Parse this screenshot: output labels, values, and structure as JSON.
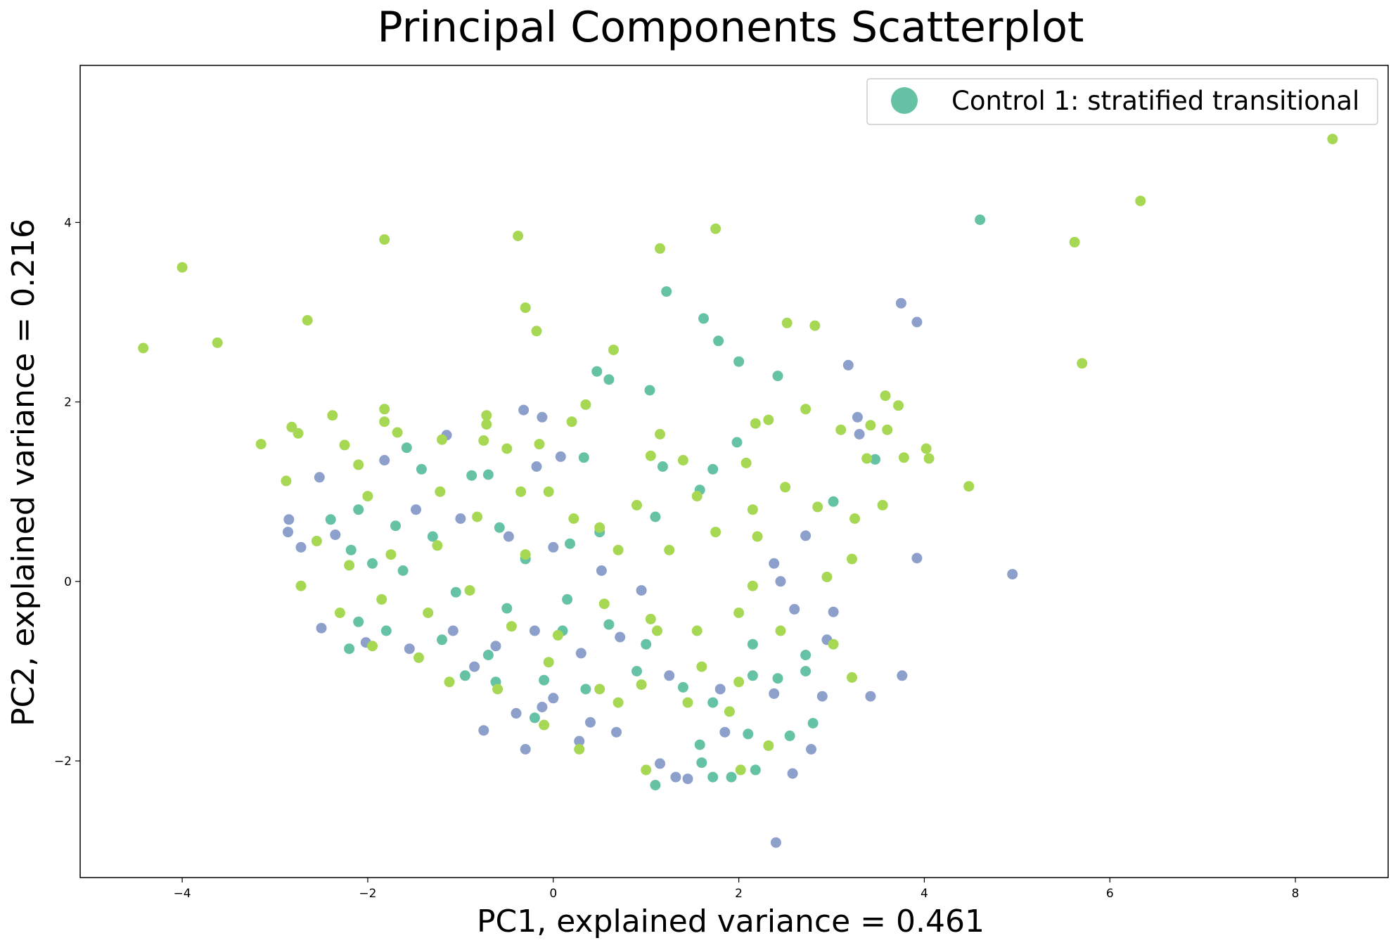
{
  "chart_data": {
    "type": "scatter",
    "title": "Principal Components Scatterplot",
    "xlabel": "PC1, explained variance = 0.461",
    "ylabel": "PC2, explained variance = 0.216",
    "xlim": [
      -5.1,
      9.0
    ],
    "ylim": [
      -3.3,
      5.75
    ],
    "xticks": [
      -4,
      -2,
      0,
      2,
      4,
      6,
      8
    ],
    "yticks": [
      -2,
      0,
      2,
      4
    ],
    "grid": false,
    "legend": {
      "placement": "top-right",
      "entries": [
        {
          "label": "Control 1: stratified transitional",
          "color": "#66c2a5"
        }
      ]
    },
    "colors": {
      "teal": "#66c2a5",
      "purple": "#8da0cb",
      "lime": "#a6d854"
    },
    "series": [
      {
        "color": "#66c2a5",
        "points": [
          [
            4.6,
            4.03
          ],
          [
            1.22,
            3.23
          ],
          [
            1.62,
            2.93
          ],
          [
            1.78,
            2.68
          ],
          [
            2.0,
            2.45
          ],
          [
            0.47,
            2.34
          ],
          [
            0.6,
            2.25
          ],
          [
            1.04,
            2.13
          ],
          [
            2.42,
            2.29
          ],
          [
            1.98,
            1.55
          ],
          [
            3.47,
            1.36
          ],
          [
            3.02,
            0.89
          ],
          [
            1.72,
            1.25
          ],
          [
            0.33,
            1.38
          ],
          [
            -1.58,
            1.49
          ],
          [
            -1.42,
            1.25
          ],
          [
            -0.88,
            1.18
          ],
          [
            -0.7,
            1.19
          ],
          [
            1.18,
            1.28
          ],
          [
            1.58,
            1.02
          ],
          [
            -2.1,
            0.8
          ],
          [
            -2.4,
            0.69
          ],
          [
            -1.7,
            0.62
          ],
          [
            -1.3,
            0.5
          ],
          [
            -0.58,
            0.6
          ],
          [
            0.18,
            0.42
          ],
          [
            0.5,
            0.55
          ],
          [
            1.1,
            0.72
          ],
          [
            -2.18,
            0.35
          ],
          [
            -1.95,
            0.2
          ],
          [
            -1.62,
            0.12
          ],
          [
            -1.05,
            -0.12
          ],
          [
            -0.5,
            -0.3
          ],
          [
            0.1,
            -0.55
          ],
          [
            0.6,
            -0.48
          ],
          [
            1.0,
            -0.7
          ],
          [
            -2.1,
            -0.45
          ],
          [
            -1.8,
            -0.55
          ],
          [
            -1.2,
            -0.65
          ],
          [
            -0.7,
            -0.82
          ],
          [
            -0.1,
            -1.1
          ],
          [
            0.35,
            -1.2
          ],
          [
            0.9,
            -1.0
          ],
          [
            1.4,
            -1.18
          ],
          [
            1.72,
            -1.35
          ],
          [
            2.1,
            -1.7
          ],
          [
            2.55,
            -1.72
          ],
          [
            2.72,
            -1.0
          ],
          [
            2.42,
            -1.08
          ],
          [
            2.15,
            -1.05
          ],
          [
            1.58,
            -1.82
          ],
          [
            1.6,
            -2.02
          ],
          [
            1.72,
            -2.18
          ],
          [
            1.92,
            -2.18
          ],
          [
            2.18,
            -2.1
          ],
          [
            1.1,
            -2.27
          ],
          [
            -0.2,
            -1.52
          ],
          [
            -0.62,
            -1.12
          ],
          [
            -0.95,
            -1.05
          ],
          [
            -2.2,
            -0.75
          ],
          [
            2.15,
            -0.7
          ],
          [
            2.72,
            -0.82
          ],
          [
            2.8,
            -1.58
          ],
          [
            -0.3,
            0.25
          ],
          [
            0.15,
            -0.2
          ]
        ]
      },
      {
        "color": "#8da0cb",
        "points": [
          [
            3.75,
            3.1
          ],
          [
            3.92,
            2.89
          ],
          [
            3.18,
            2.41
          ],
          [
            3.28,
            1.83
          ],
          [
            3.3,
            1.64
          ],
          [
            -0.32,
            1.91
          ],
          [
            -0.12,
            1.83
          ],
          [
            -1.15,
            1.63
          ],
          [
            -1.82,
            1.35
          ],
          [
            -2.52,
            1.16
          ],
          [
            0.08,
            1.39
          ],
          [
            -0.18,
            1.28
          ],
          [
            -2.85,
            0.69
          ],
          [
            -2.86,
            0.55
          ],
          [
            -2.72,
            0.38
          ],
          [
            -2.35,
            0.52
          ],
          [
            -1.48,
            0.8
          ],
          [
            -1.0,
            0.7
          ],
          [
            -0.48,
            0.5
          ],
          [
            0.0,
            0.38
          ],
          [
            0.52,
            0.12
          ],
          [
            0.95,
            -0.1
          ],
          [
            2.45,
            0.0
          ],
          [
            2.38,
            0.2
          ],
          [
            3.92,
            0.26
          ],
          [
            4.95,
            0.08
          ],
          [
            2.72,
            0.51
          ],
          [
            2.6,
            -0.31
          ],
          [
            3.02,
            -0.34
          ],
          [
            -2.5,
            -0.52
          ],
          [
            -2.02,
            -0.68
          ],
          [
            -1.55,
            -0.75
          ],
          [
            -1.08,
            -0.55
          ],
          [
            -0.62,
            -0.72
          ],
          [
            -0.2,
            -0.55
          ],
          [
            0.3,
            -0.8
          ],
          [
            0.72,
            -0.62
          ],
          [
            1.25,
            -1.05
          ],
          [
            1.8,
            -1.2
          ],
          [
            2.38,
            -1.25
          ],
          [
            2.95,
            -0.65
          ],
          [
            3.42,
            -1.28
          ],
          [
            3.76,
            -1.05
          ],
          [
            2.9,
            -1.28
          ],
          [
            2.78,
            -1.87
          ],
          [
            2.58,
            -2.14
          ],
          [
            2.4,
            -2.91
          ],
          [
            1.85,
            -1.68
          ],
          [
            1.32,
            -2.18
          ],
          [
            1.15,
            -2.03
          ],
          [
            1.45,
            -2.2
          ],
          [
            0.68,
            -1.68
          ],
          [
            0.28,
            -1.78
          ],
          [
            -0.3,
            -1.87
          ],
          [
            -0.75,
            -1.66
          ],
          [
            -0.12,
            -1.4
          ],
          [
            -0.4,
            -1.47
          ],
          [
            0.4,
            -1.57
          ],
          [
            0.0,
            -1.3
          ],
          [
            -0.85,
            -0.95
          ]
        ]
      },
      {
        "color": "#a6d854",
        "points": [
          [
            8.4,
            4.93
          ],
          [
            6.33,
            4.24
          ],
          [
            5.62,
            3.78
          ],
          [
            5.7,
            2.43
          ],
          [
            -4.0,
            3.5
          ],
          [
            -4.42,
            2.6
          ],
          [
            -3.62,
            2.66
          ],
          [
            -2.65,
            2.91
          ],
          [
            -1.82,
            3.81
          ],
          [
            -0.38,
            3.85
          ],
          [
            -0.3,
            3.05
          ],
          [
            -0.18,
            2.79
          ],
          [
            1.15,
            3.71
          ],
          [
            1.75,
            3.93
          ],
          [
            2.52,
            2.88
          ],
          [
            2.82,
            2.85
          ],
          [
            0.65,
            2.58
          ],
          [
            3.58,
            2.07
          ],
          [
            3.72,
            1.96
          ],
          [
            4.02,
            1.48
          ],
          [
            4.05,
            1.37
          ],
          [
            3.6,
            1.69
          ],
          [
            3.42,
            1.74
          ],
          [
            3.1,
            1.69
          ],
          [
            3.78,
            1.38
          ],
          [
            4.48,
            1.06
          ],
          [
            3.38,
            1.37
          ],
          [
            3.55,
            0.85
          ],
          [
            -3.15,
            1.53
          ],
          [
            -2.82,
            1.72
          ],
          [
            -2.75,
            1.65
          ],
          [
            -2.38,
            1.85
          ],
          [
            -2.25,
            1.52
          ],
          [
            -1.82,
            1.92
          ],
          [
            -1.82,
            1.78
          ],
          [
            -1.68,
            1.66
          ],
          [
            -0.72,
            1.85
          ],
          [
            -0.72,
            1.75
          ],
          [
            0.35,
            1.97
          ],
          [
            0.2,
            1.78
          ],
          [
            -2.88,
            1.12
          ],
          [
            -2.1,
            1.3
          ],
          [
            -1.2,
            1.58
          ],
          [
            -0.75,
            1.57
          ],
          [
            -0.15,
            1.53
          ],
          [
            1.15,
            1.64
          ],
          [
            2.18,
            1.76
          ],
          [
            2.32,
            1.8
          ],
          [
            2.72,
            1.92
          ],
          [
            2.08,
            1.32
          ],
          [
            2.5,
            1.05
          ],
          [
            2.85,
            0.83
          ],
          [
            3.25,
            0.7
          ],
          [
            2.15,
            0.8
          ],
          [
            1.55,
            0.95
          ],
          [
            0.9,
            0.85
          ],
          [
            -0.35,
            1.0
          ],
          [
            -1.22,
            1.0
          ],
          [
            -2.0,
            0.95
          ],
          [
            -2.55,
            0.45
          ],
          [
            -2.2,
            0.18
          ],
          [
            -1.75,
            0.3
          ],
          [
            -1.25,
            0.4
          ],
          [
            -0.82,
            0.72
          ],
          [
            -0.3,
            0.3
          ],
          [
            0.22,
            0.7
          ],
          [
            0.7,
            0.35
          ],
          [
            1.25,
            0.35
          ],
          [
            1.75,
            0.55
          ],
          [
            2.2,
            0.5
          ],
          [
            2.95,
            0.05
          ],
          [
            3.22,
            0.25
          ],
          [
            -2.72,
            -0.05
          ],
          [
            -2.3,
            -0.35
          ],
          [
            -1.85,
            -0.2
          ],
          [
            -1.35,
            -0.35
          ],
          [
            -0.9,
            -0.1
          ],
          [
            -0.45,
            -0.5
          ],
          [
            0.05,
            -0.6
          ],
          [
            0.55,
            -0.25
          ],
          [
            1.05,
            -0.42
          ],
          [
            1.55,
            -0.55
          ],
          [
            2.0,
            -0.35
          ],
          [
            2.45,
            -0.55
          ],
          [
            3.02,
            -0.7
          ],
          [
            -1.95,
            -0.72
          ],
          [
            -1.45,
            -0.85
          ],
          [
            -1.12,
            -1.12
          ],
          [
            -0.6,
            -1.2
          ],
          [
            -0.05,
            -0.9
          ],
          [
            0.5,
            -1.2
          ],
          [
            0.95,
            -1.15
          ],
          [
            1.45,
            -1.35
          ],
          [
            1.9,
            -1.45
          ],
          [
            2.32,
            -1.83
          ],
          [
            2.02,
            -2.1
          ],
          [
            1.0,
            -2.1
          ],
          [
            0.28,
            -1.87
          ],
          [
            -0.1,
            -1.6
          ],
          [
            0.7,
            -1.35
          ],
          [
            1.12,
            -0.55
          ],
          [
            1.6,
            -0.95
          ],
          [
            2.0,
            -1.12
          ],
          [
            3.22,
            -1.07
          ],
          [
            2.15,
            -0.05
          ],
          [
            -0.5,
            1.48
          ],
          [
            -0.05,
            1.0
          ],
          [
            0.5,
            0.6
          ],
          [
            1.05,
            1.4
          ],
          [
            1.4,
            1.35
          ]
        ]
      }
    ]
  }
}
